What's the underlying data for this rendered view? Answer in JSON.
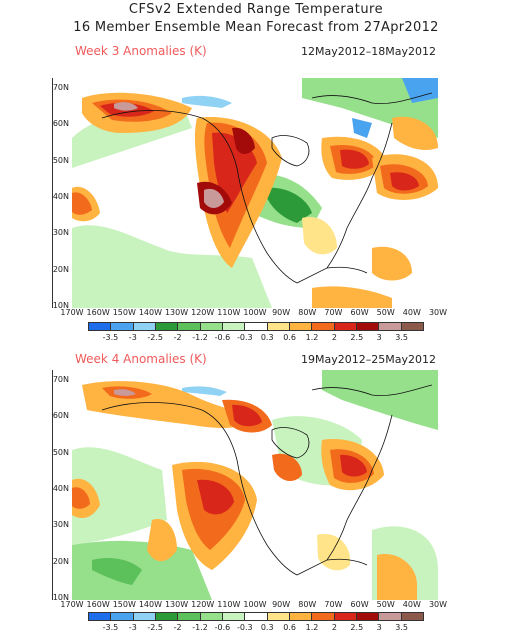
{
  "header": {
    "title_line1": "CFSv2 Extended Range Temperature",
    "title_line2": "16 Member Ensemble Mean Forecast from 27Apr2012"
  },
  "panels": [
    {
      "title": "Week 3 Anomalies (K)",
      "date_range": "12May2012–18May2012",
      "latitude_ticks": [
        "70N",
        "60N",
        "50N",
        "40N",
        "30N",
        "20N",
        "10N"
      ],
      "longitude_ticks": [
        "170W",
        "160W",
        "150W",
        "140W",
        "130W",
        "120W",
        "110W",
        "100W",
        "90W",
        "80W",
        "70W",
        "60W",
        "50W",
        "40W",
        "30W"
      ]
    },
    {
      "title": "Week 4 Anomalies (K)",
      "date_range": "19May2012–25May2012",
      "latitude_ticks": [
        "70N",
        "60N",
        "50N",
        "40N",
        "30N",
        "20N",
        "10N"
      ],
      "longitude_ticks": [
        "170W",
        "160W",
        "150W",
        "140W",
        "130W",
        "120W",
        "110W",
        "100W",
        "90W",
        "80W",
        "70W",
        "60W",
        "50W",
        "40W",
        "30W"
      ]
    }
  ],
  "colorbar": {
    "labels": [
      "-3.5",
      "-3",
      "-2.5",
      "-2",
      "-1.2",
      "-0.6",
      "-0.3",
      "0.3",
      "0.6",
      "1.2",
      "2",
      "2.5",
      "3",
      "3.5"
    ],
    "colors": [
      "#1e6eeb",
      "#49a3ef",
      "#8fd2f4",
      "#2d9a3a",
      "#5cc15a",
      "#96e08c",
      "#c8f2be",
      "#ffffff",
      "#ffe48a",
      "#ffb340",
      "#f26a1c",
      "#d8261a",
      "#a30a0a",
      "#c89a9a",
      "#8b5a4a"
    ]
  }
}
